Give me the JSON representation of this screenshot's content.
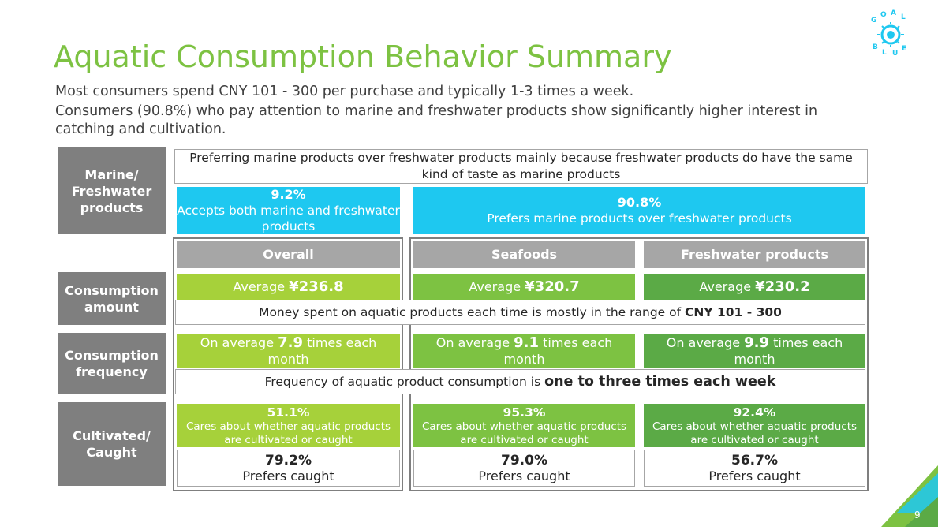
{
  "header": {
    "title": "Aquatic Consumption Behavior Summary",
    "subtitle_line1": "Most consumers spend CNY 101 - 300 per purchase and typically 1-3 times a week.",
    "subtitle_line2": "Consumers (90.8%) who pay attention to marine and freshwater products show significantly higher interest in",
    "subtitle_line3": "catching and cultivation.",
    "logo_letters": "GOAL BLUE"
  },
  "rows": {
    "marine": "Marine/ Freshwater products",
    "amount": "Consumption amount",
    "frequency": "Consumption frequency",
    "cultivated": "Cultivated/ Caught"
  },
  "marine": {
    "note": "Preferring marine products over freshwater products mainly because freshwater products do have the same kind of taste as marine products",
    "both_pct": "9.2%",
    "both_label": "Accepts both marine and freshwater products",
    "prefers_pct": "90.8%",
    "prefers_label": "Prefers marine products over freshwater products"
  },
  "columns": [
    "Overall",
    "Seafoods",
    "Freshwater products"
  ],
  "amount": {
    "prefix": "Average ",
    "values": [
      "¥236.8",
      "¥320.7",
      "¥230.2"
    ],
    "note_prefix": "Money spent on aquatic products each time is mostly in the range of ",
    "note_bold": "CNY 101 - 300"
  },
  "frequency": {
    "prefix": "On average ",
    "values": [
      "7.9",
      "9.1",
      "9.9"
    ],
    "suffix": " times each month",
    "note_prefix": "Frequency of aquatic product consumption is ",
    "note_bold": "one to three times each week"
  },
  "cultivated": {
    "care_pcts": [
      "51.1%",
      "95.3%",
      "92.4%"
    ],
    "care_label": "Cares about whether aquatic products are cultivated or caught",
    "caught_pcts": [
      "79.2%",
      "79.0%",
      "56.7%"
    ],
    "caught_label": "Prefers caught"
  },
  "page_number": "9",
  "colors": {
    "title_green": "#7dc242",
    "row_label_gray": "#7f7f7f",
    "column_header_gray": "#a6a6a6",
    "accent_blue": "#1ec8f0",
    "overall_green": "#a6d13a",
    "seafood_green": "#7dc242",
    "freshwater_green": "#5baa46"
  }
}
